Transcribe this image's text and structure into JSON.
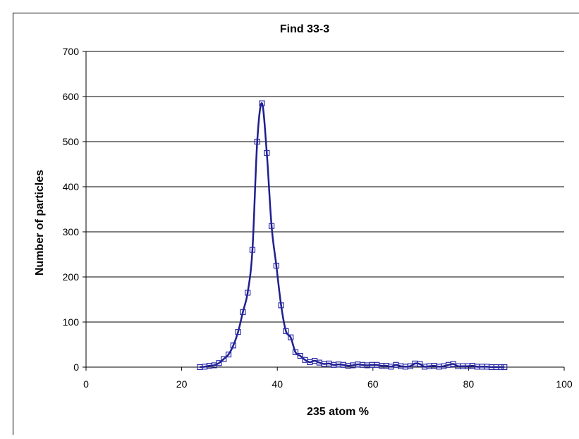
{
  "chart_data": {
    "type": "scatter",
    "title": "Find 33-3",
    "xlabel": "235 atom %",
    "ylabel": "Number of particles",
    "xlim": [
      0,
      100
    ],
    "ylim": [
      0,
      700
    ],
    "xticks": [
      "0",
      "20",
      "40",
      "60",
      "80",
      "100"
    ],
    "yticks": [
      "0",
      "100",
      "200",
      "300",
      "400",
      "500",
      "600",
      "700"
    ],
    "grid": "horizontal",
    "legend": "none",
    "colors": {
      "series": "#1f1f8f",
      "marker": "#2a2aa8",
      "grid": "#000000"
    },
    "series": [
      {
        "marker": "open-square",
        "line": "smoothed",
        "x": [
          23.8,
          24.8,
          25.8,
          26.8,
          27.8,
          28.8,
          29.8,
          30.8,
          31.8,
          32.8,
          33.8,
          34.8,
          35.8,
          36.8,
          37.8,
          38.8,
          39.8,
          40.8,
          41.8,
          42.8,
          43.8,
          44.8,
          45.8,
          46.8,
          47.8,
          48.8,
          49.8,
          50.8,
          51.8,
          52.8,
          53.8,
          54.8,
          55.8,
          56.8,
          57.8,
          58.8,
          59.8,
          60.8,
          61.8,
          62.8,
          63.8,
          64.8,
          65.8,
          66.8,
          67.8,
          68.8,
          69.8,
          70.8,
          71.8,
          72.8,
          73.8,
          74.8,
          75.8,
          76.8,
          77.8,
          78.8,
          79.8,
          80.8,
          81.8,
          82.8,
          83.8,
          84.8,
          85.8,
          86.8,
          87.5
        ],
        "y": [
          0,
          1,
          3,
          4,
          9,
          18,
          28,
          48,
          78,
          122,
          165,
          260,
          500,
          585,
          475,
          313,
          225,
          137,
          80,
          66,
          33,
          25,
          16,
          11,
          14,
          10,
          7,
          8,
          5,
          6,
          5,
          3,
          4,
          6,
          5,
          4,
          5,
          5,
          3,
          3,
          1,
          5,
          2,
          1,
          2,
          8,
          7,
          1,
          2,
          3,
          1,
          2,
          5,
          7,
          2,
          2,
          2,
          3,
          1,
          1,
          1,
          0,
          0,
          0,
          0
        ]
      }
    ]
  }
}
